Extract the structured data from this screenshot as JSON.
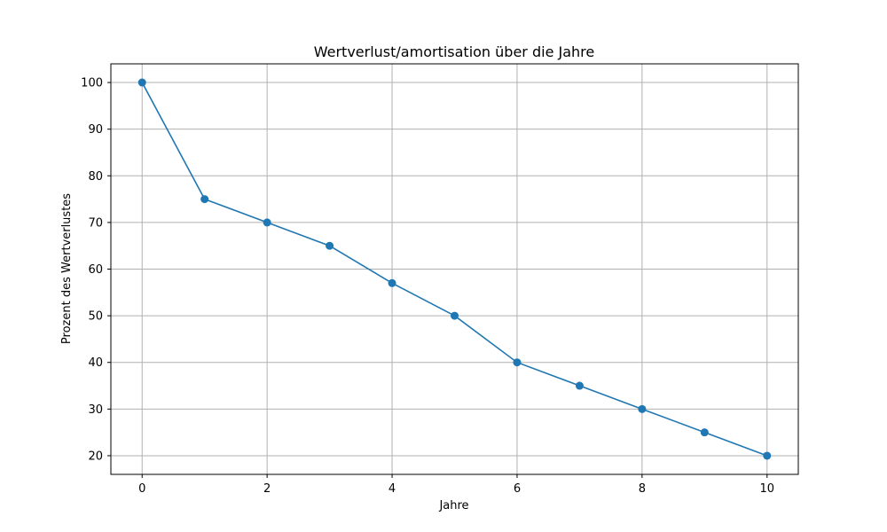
{
  "chart_data": {
    "type": "line",
    "title": "Wertverlust/amortisation über die Jahre",
    "xlabel": "Jahre",
    "ylabel": "Prozent des Wertverlustes",
    "xlim": [
      -0.5,
      10.5
    ],
    "ylim": [
      16,
      104
    ],
    "xticks": [
      0,
      2,
      4,
      6,
      8,
      10
    ],
    "yticks": [
      20,
      30,
      40,
      50,
      60,
      70,
      80,
      90,
      100
    ],
    "grid": true,
    "series": [
      {
        "x": [
          0,
          1,
          2,
          3,
          4,
          5,
          6,
          7,
          8,
          9,
          10
        ],
        "values": [
          100,
          75,
          70,
          65,
          57,
          50,
          40,
          35,
          30,
          25,
          20
        ],
        "color": "#1f77b4",
        "marker": "circle"
      }
    ]
  }
}
